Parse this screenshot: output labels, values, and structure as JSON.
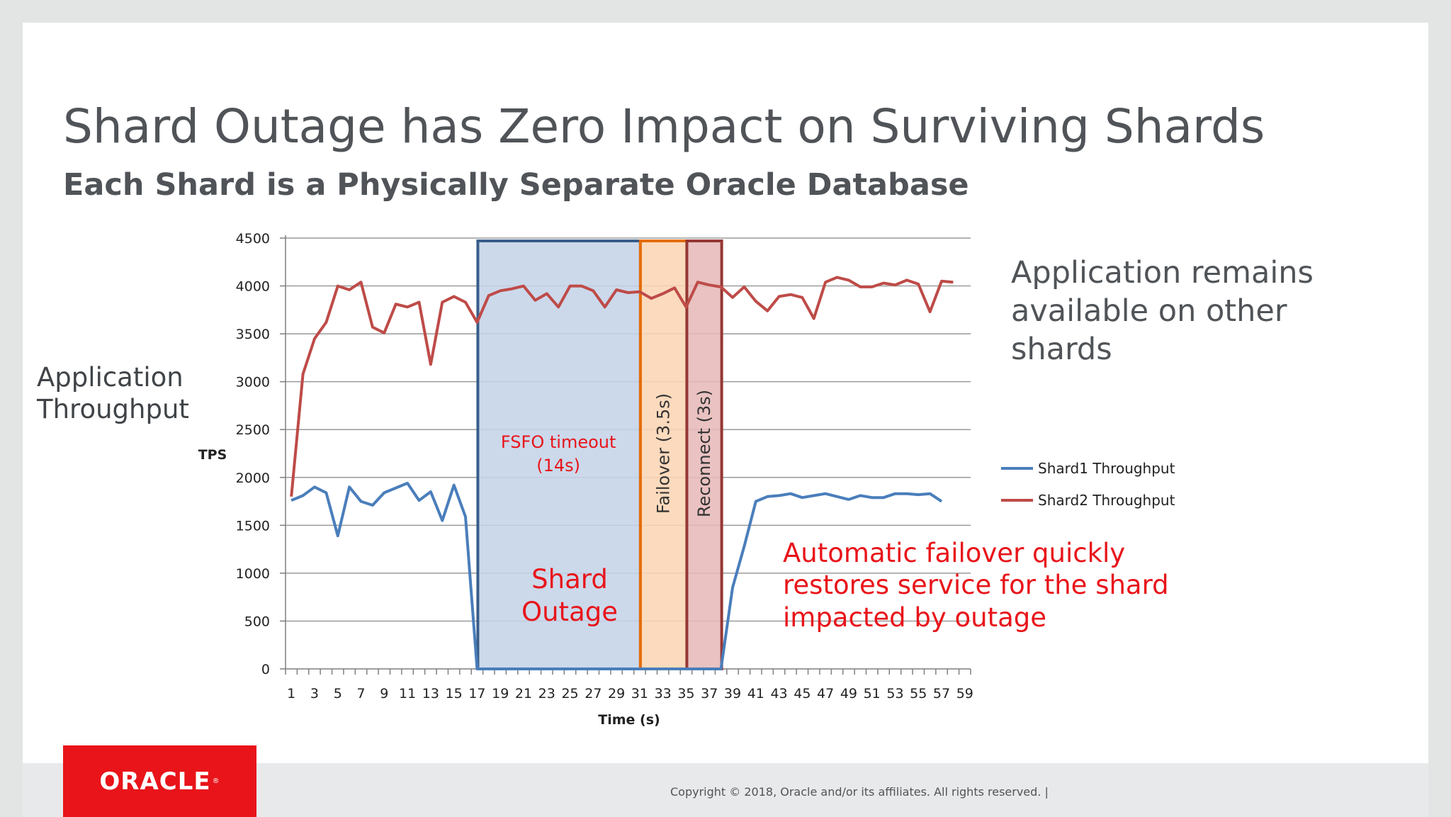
{
  "slide": {
    "title": "Shard Outage has Zero Impact on Surviving Shards",
    "subtitle": "Each Shard is a Physically Separate Oracle Database",
    "side_label_line1": "Application",
    "side_label_line2": "Throughput",
    "right_note_line1": "Application remains",
    "right_note_line2": "available on other",
    "right_note_line3": "shards",
    "logo_text": "ORACLE",
    "copyright": "Copyright © 2018, Oracle and/or its affiliates. All rights reserved.  |"
  },
  "colors": {
    "shard1": "#4a7ebb",
    "shard2": "#be4b48",
    "outage_fill": "#c5d4e8",
    "outage_border": "#385d8a",
    "failover_fill": "#fcd5b4",
    "failover_border": "#e46c0a",
    "reconnect_fill": "#e6b9b8",
    "reconnect_border": "#953735",
    "annotation_red": "#e8141a",
    "oracle_red": "#e8141a"
  },
  "chart_data": {
    "type": "line",
    "xlabel": "Time (s)",
    "ylabel": "TPS",
    "xlim": [
      1,
      59
    ],
    "ylim": [
      0,
      4500
    ],
    "y_ticks": [
      0,
      500,
      1000,
      1500,
      2000,
      2500,
      3000,
      3500,
      4000,
      4500
    ],
    "x_tick_labels": [
      1,
      3,
      5,
      7,
      9,
      11,
      13,
      15,
      17,
      19,
      21,
      23,
      25,
      27,
      29,
      31,
      33,
      35,
      37,
      39,
      41,
      43,
      45,
      47,
      49,
      51,
      53,
      55,
      57,
      59
    ],
    "grid": true,
    "legend": "right",
    "series": [
      {
        "name": "Shard1 Throughput",
        "x": [
          1,
          2,
          3,
          4,
          5,
          6,
          7,
          8,
          9,
          10,
          11,
          12,
          13,
          14,
          15,
          16,
          17,
          38,
          39,
          40,
          41,
          42,
          43,
          44,
          45,
          46,
          47,
          48,
          49,
          50,
          51,
          52,
          53,
          54,
          55,
          56,
          57
        ],
        "y": [
          1760,
          1810,
          1900,
          1840,
          1390,
          1900,
          1750,
          1710,
          1840,
          1890,
          1940,
          1760,
          1850,
          1550,
          1920,
          1590,
          0,
          0,
          850,
          1280,
          1750,
          1800,
          1810,
          1830,
          1790,
          1810,
          1830,
          1800,
          1770,
          1810,
          1790,
          1790,
          1830,
          1830,
          1820,
          1830,
          1750
        ]
      },
      {
        "name": "Shard2 Throughput",
        "x": [
          1,
          2,
          3,
          4,
          5,
          6,
          7,
          8,
          9,
          10,
          11,
          12,
          13,
          14,
          15,
          16,
          17,
          18,
          19,
          20,
          21,
          22,
          23,
          24,
          25,
          26,
          27,
          28,
          29,
          30,
          31,
          32,
          33,
          34,
          35,
          36,
          37,
          38,
          39,
          40,
          41,
          42,
          43,
          44,
          45,
          46,
          47,
          48,
          49,
          50,
          51,
          52,
          53,
          54,
          55,
          56,
          57,
          58
        ],
        "y": [
          1800,
          3080,
          3450,
          3620,
          4000,
          3960,
          4040,
          3570,
          3510,
          3810,
          3780,
          3830,
          3180,
          3830,
          3890,
          3830,
          3620,
          3900,
          3950,
          3970,
          4000,
          3850,
          3920,
          3780,
          4000,
          4000,
          3950,
          3780,
          3960,
          3930,
          3940,
          3870,
          3920,
          3980,
          3780,
          4040,
          4010,
          3990,
          3880,
          3990,
          3840,
          3740,
          3890,
          3910,
          3880,
          3660,
          4040,
          4090,
          4060,
          3990,
          3990,
          4030,
          4010,
          4060,
          4020,
          3730,
          4050,
          4040
        ]
      }
    ],
    "regions": [
      {
        "name": "outage",
        "x_start": 17,
        "x_end": 31,
        "label_line1": "FSFO timeout",
        "label_line2": "(14s)"
      },
      {
        "name": "failover",
        "x_start": 31,
        "x_end": 35,
        "label": "Failover (3.5s)"
      },
      {
        "name": "reconnect",
        "x_start": 35,
        "x_end": 38,
        "label": "Reconnect (3s)"
      }
    ],
    "annotations": {
      "shard_outage_line1": "Shard",
      "shard_outage_line2": "Outage",
      "failover_note_line1": "Automatic failover quickly",
      "failover_note_line2": "restores service for the shard",
      "failover_note_line3": "impacted by outage"
    }
  }
}
